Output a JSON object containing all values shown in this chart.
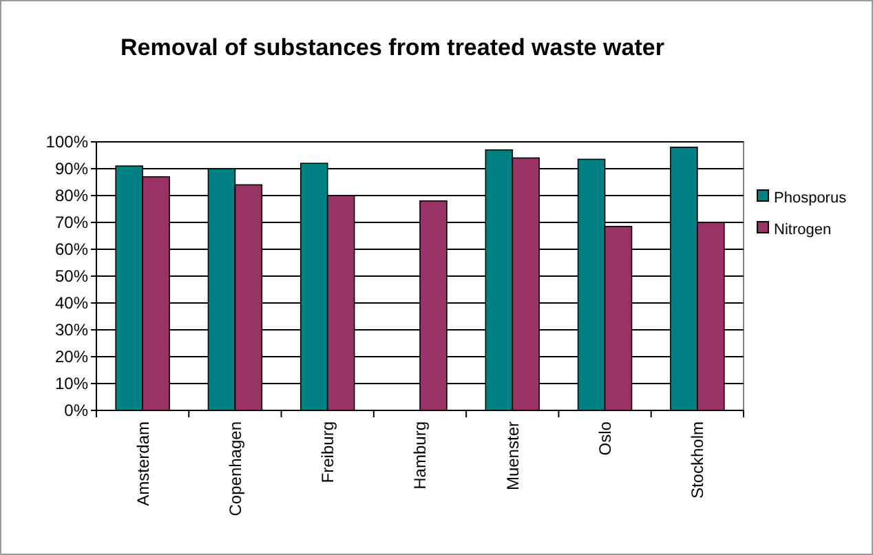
{
  "chart_data": {
    "type": "bar",
    "title": "Removal of substances from treated waste water",
    "categories": [
      "Amsterdam",
      "Copenhagen",
      "Freiburg",
      "Hamburg",
      "Muenster",
      "Oslo",
      "Stockholm"
    ],
    "series": [
      {
        "name": "Phosporus",
        "color": "#008080",
        "values": [
          91,
          90,
          92,
          null,
          97,
          93.5,
          98
        ]
      },
      {
        "name": "Nitrogen",
        "color": "#993366",
        "values": [
          87,
          84,
          80,
          78,
          94,
          68.5,
          70
        ]
      }
    ],
    "ylim": [
      0,
      100
    ],
    "yticks": [
      {
        "value": 0,
        "label": "0%"
      },
      {
        "value": 10,
        "label": "10%"
      },
      {
        "value": 20,
        "label": "20%"
      },
      {
        "value": 30,
        "label": "30%"
      },
      {
        "value": 40,
        "label": "40%"
      },
      {
        "value": 50,
        "label": "50%"
      },
      {
        "value": 60,
        "label": "60%"
      },
      {
        "value": 70,
        "label": "70%"
      },
      {
        "value": 80,
        "label": "80%"
      },
      {
        "value": 90,
        "label": "90%"
      },
      {
        "value": 100,
        "label": "100%"
      }
    ],
    "grid": "y",
    "legend": "right"
  }
}
